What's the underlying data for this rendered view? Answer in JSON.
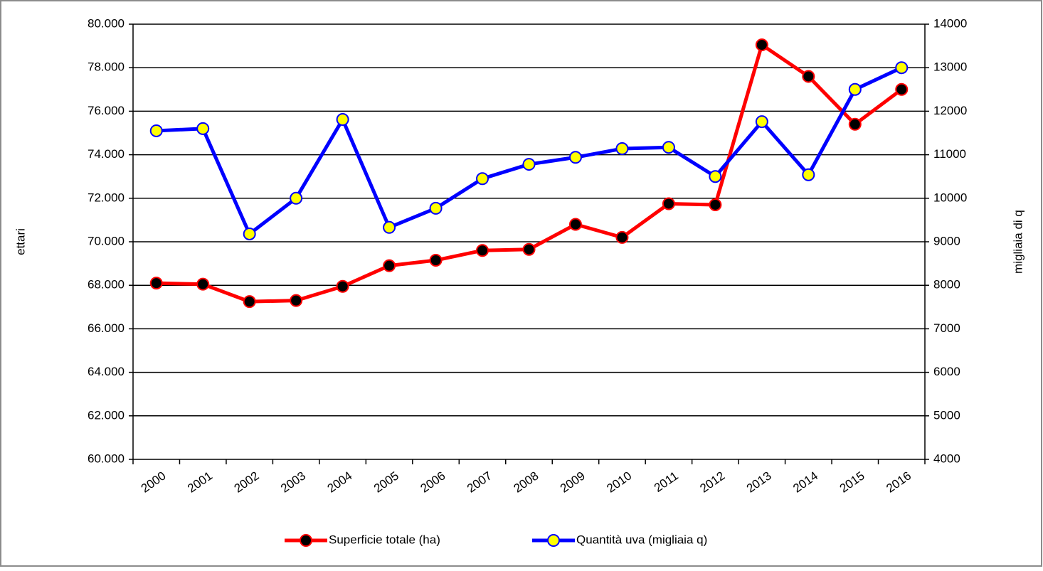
{
  "chart_data": {
    "type": "line",
    "categories": [
      "2000",
      "2001",
      "2002",
      "2003",
      "2004",
      "2005",
      "2006",
      "2007",
      "2008",
      "2009",
      "2010",
      "2011",
      "2012",
      "2013",
      "2014",
      "2015",
      "2016"
    ],
    "y_label": "ettari",
    "y2_label": "migliaia di q",
    "ylim": [
      60000,
      80000
    ],
    "yticks": [
      {
        "value": 60000,
        "label": "60.000"
      },
      {
        "value": 62000,
        "label": "62.000"
      },
      {
        "value": 64000,
        "label": "64.000"
      },
      {
        "value": 66000,
        "label": "66.000"
      },
      {
        "value": 68000,
        "label": "68.000"
      },
      {
        "value": 70000,
        "label": "70.000"
      },
      {
        "value": 72000,
        "label": "72.000"
      },
      {
        "value": 74000,
        "label": "74.000"
      },
      {
        "value": 76000,
        "label": "76.000"
      },
      {
        "value": 78000,
        "label": "78.000"
      },
      {
        "value": 80000,
        "label": "80.000"
      }
    ],
    "y2lim": [
      4000,
      14000
    ],
    "y2ticks": [
      4000,
      5000,
      6000,
      7000,
      8000,
      9000,
      10000,
      11000,
      12000,
      13000,
      14000
    ],
    "grid": true,
    "legend": "bottom",
    "series": [
      {
        "name": "Superficie totale (ha)",
        "color": "#ff0000",
        "marker_color": "#000000",
        "values": [
          68100,
          68050,
          67250,
          67300,
          67950,
          68900,
          69150,
          69600,
          69650,
          70800,
          70200,
          71750,
          71700,
          79050,
          77600,
          75400,
          77000
        ]
      },
      {
        "name": "Quantità uva (migliaia q)",
        "color": "#0000ff",
        "marker_color": "#ffff00",
        "axis": "y2",
        "values": [
          11550,
          11600,
          9180,
          10000,
          11810,
          9330,
          9770,
          10450,
          10780,
          10940,
          11140,
          11170,
          10500,
          11760,
          10540,
          12500,
          13000
        ]
      }
    ]
  }
}
